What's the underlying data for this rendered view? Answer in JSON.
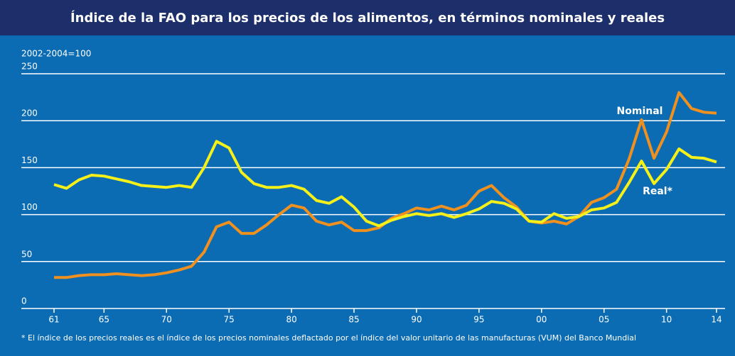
{
  "chart_data": {
    "type": "line",
    "title": "Índice de la FAO para los precios de los alimentos, en términos nominales y reales",
    "y_label": "2002-2004=100",
    "footnote": "* El índice de los precios reales es el índice de los precios nominales deflactado por el índice del valor unitario de las manufacturas (VUM) del Banco Mundial",
    "x": [
      1961,
      1962,
      1963,
      1964,
      1965,
      1966,
      1967,
      1968,
      1969,
      1970,
      1971,
      1972,
      1973,
      1974,
      1975,
      1976,
      1977,
      1978,
      1979,
      1980,
      1981,
      1982,
      1983,
      1984,
      1985,
      1986,
      1987,
      1988,
      1989,
      1990,
      1991,
      1992,
      1993,
      1994,
      1995,
      1996,
      1997,
      1998,
      1999,
      2000,
      2001,
      2002,
      2003,
      2004,
      2005,
      2006,
      2007,
      2008,
      2009,
      2010,
      2011,
      2012,
      2013,
      2014
    ],
    "series": [
      {
        "name": "Nominal",
        "color": "#f0901e",
        "values": [
          33,
          33,
          35,
          36,
          36,
          37,
          36,
          35,
          36,
          38,
          41,
          45,
          60,
          87,
          92,
          80,
          80,
          89,
          100,
          110,
          107,
          93,
          89,
          92,
          83,
          83,
          86,
          96,
          101,
          107,
          105,
          109,
          105,
          110,
          125,
          131,
          118,
          108,
          93,
          91,
          93,
          90,
          98,
          113,
          118,
          127,
          159,
          201,
          160,
          188,
          230,
          213,
          209,
          208
        ]
      },
      {
        "name": "Real*",
        "color": "#f5f019",
        "values": [
          132,
          128,
          137,
          142,
          141,
          138,
          135,
          131,
          130,
          129,
          131,
          129,
          150,
          178,
          171,
          145,
          133,
          129,
          129,
          131,
          127,
          115,
          112,
          119,
          108,
          93,
          88,
          94,
          98,
          101,
          99,
          101,
          97,
          101,
          106,
          114,
          112,
          106,
          93,
          92,
          101,
          96,
          98,
          105,
          107,
          113,
          134,
          157,
          133,
          148,
          170,
          161,
          160,
          156
        ]
      }
    ],
    "xlim": [
      1961,
      2014
    ],
    "xticks": [
      {
        "value": 1961,
        "label": "61"
      },
      {
        "value": 1965,
        "label": "65"
      },
      {
        "value": 1970,
        "label": "70"
      },
      {
        "value": 1975,
        "label": "75"
      },
      {
        "value": 1980,
        "label": "80"
      },
      {
        "value": 1985,
        "label": "85"
      },
      {
        "value": 1990,
        "label": "90"
      },
      {
        "value": 1995,
        "label": "95"
      },
      {
        "value": 2000,
        "label": "00"
      },
      {
        "value": 2005,
        "label": "05"
      },
      {
        "value": 2010,
        "label": "10"
      },
      {
        "value": 2014,
        "label": "14"
      }
    ],
    "ylim": [
      0,
      250
    ],
    "yticks": [
      0,
      50,
      100,
      150,
      200,
      250
    ],
    "grid": true
  }
}
